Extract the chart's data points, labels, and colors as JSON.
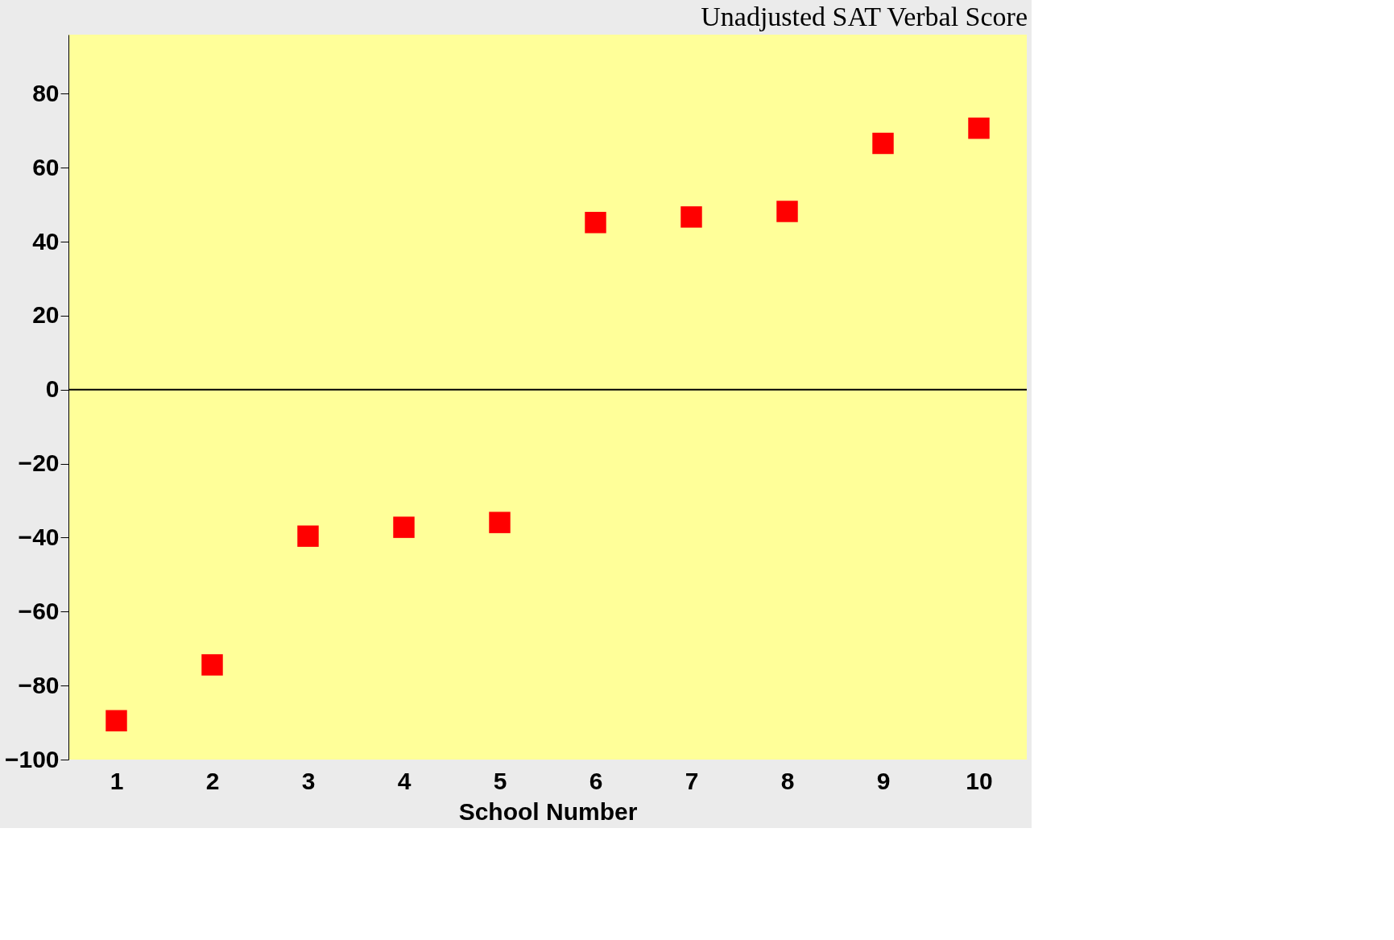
{
  "chart_data": {
    "type": "scatter",
    "title": "Unadjusted SAT Verbal Score",
    "xlabel": "School Number",
    "categories": [
      "1",
      "2",
      "3",
      "4",
      "5",
      "6",
      "7",
      "8",
      "9",
      "10"
    ],
    "series": [
      {
        "color": "#ff0000",
        "values": [
          -89.5,
          -74.4,
          -39.6,
          -37.2,
          -35.9,
          45.2,
          46.7,
          48.2,
          66.6,
          70.7
        ]
      }
    ],
    "ylim": [
      -100,
      96
    ],
    "yticks": [
      -100,
      -80,
      -60,
      -40,
      -20,
      0,
      20,
      40,
      60,
      80
    ],
    "ref_lines": [
      {
        "axis": "y",
        "value": 0,
        "color": "#000000"
      }
    ],
    "marker": "square",
    "grid": false,
    "legend": false
  }
}
